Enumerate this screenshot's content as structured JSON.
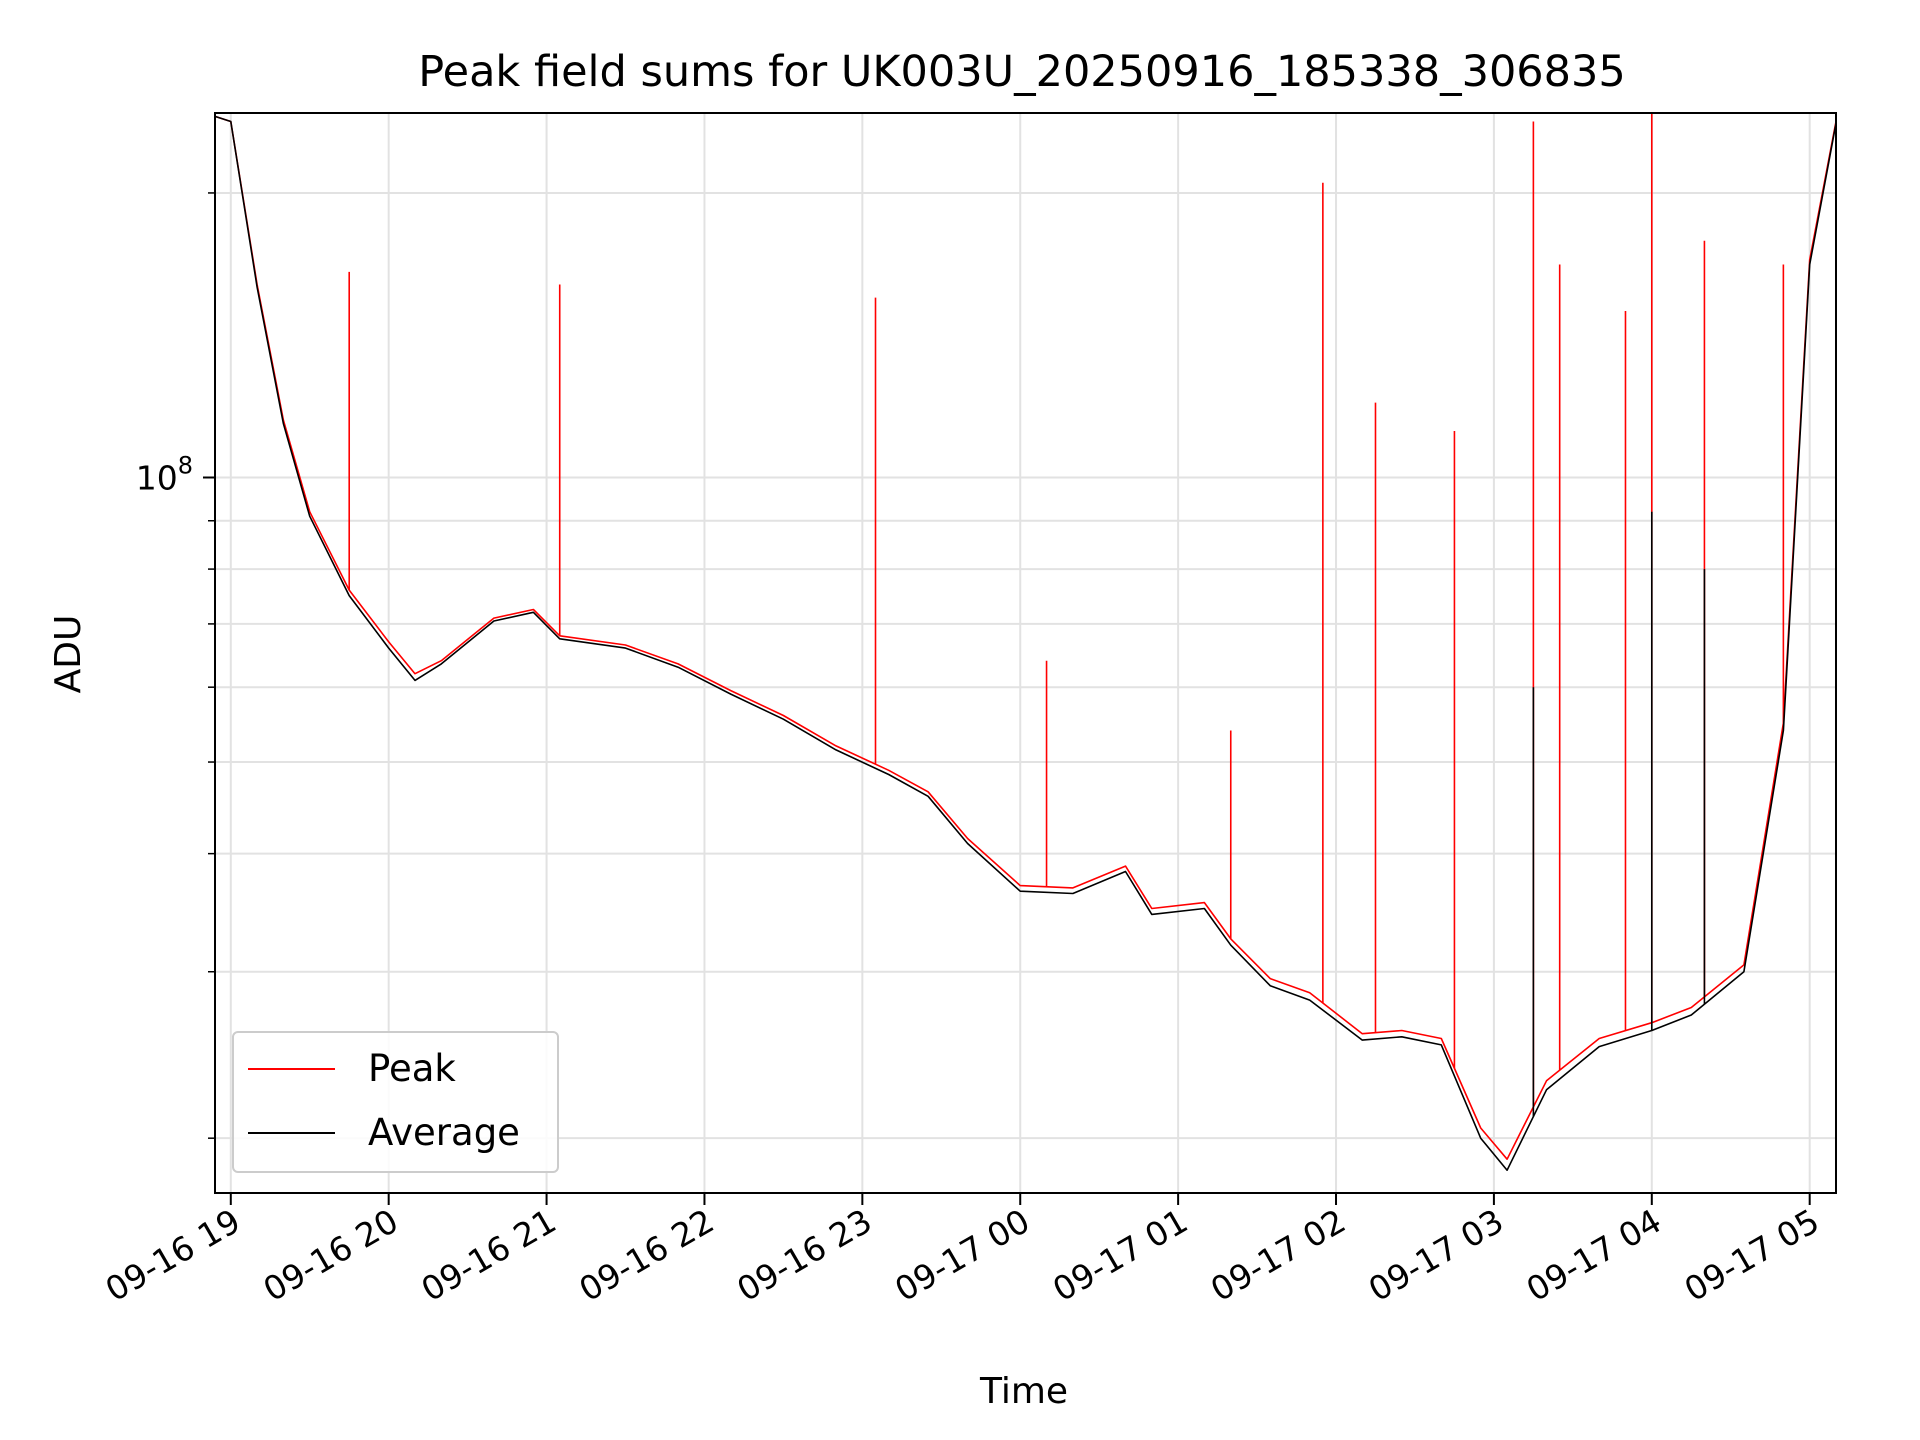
{
  "chart_data": {
    "type": "line",
    "title": "Peak field sums for UK003U_20250916_185338_306835",
    "xlabel": "Time",
    "ylabel": "ADU",
    "yscale": "log",
    "xlim": [
      "2025-09-16T18:54",
      "2025-09-17T05:10"
    ],
    "ylim": [
      17500000,
      243000000
    ],
    "grid": true,
    "legend_position": "lower-left",
    "x_ticks": [
      "09-16 19",
      "09-16 20",
      "09-16 21",
      "09-16 22",
      "09-16 23",
      "09-17 00",
      "09-17 01",
      "09-17 02",
      "09-17 03",
      "09-17 04",
      "09-17 05"
    ],
    "y_tick_labels": [
      {
        "value": 100000000,
        "base": "10",
        "exponent": "8"
      }
    ],
    "y_minor_ticks": [
      20000000,
      30000000,
      40000000,
      50000000,
      60000000,
      70000000,
      80000000,
      90000000,
      200000000
    ],
    "series": [
      {
        "name": "Peak",
        "color": "#ff0000",
        "baseline": [
          [
            "2025-09-16T18:54",
            241000000
          ],
          [
            "2025-09-16T19:00",
            238000000
          ],
          [
            "2025-09-16T19:10",
            160000000
          ],
          [
            "2025-09-16T19:20",
            115000000
          ],
          [
            "2025-09-16T19:30",
            92000000
          ],
          [
            "2025-09-16T19:45",
            76000000
          ],
          [
            "2025-09-16T20:00",
            67000000
          ],
          [
            "2025-09-16T20:10",
            62000000
          ],
          [
            "2025-09-16T20:20",
            64000000
          ],
          [
            "2025-09-16T20:40",
            71000000
          ],
          [
            "2025-09-16T20:55",
            72500000
          ],
          [
            "2025-09-16T21:05",
            68000000
          ],
          [
            "2025-09-16T21:30",
            66500000
          ],
          [
            "2025-09-16T21:50",
            63500000
          ],
          [
            "2025-09-16T22:10",
            59500000
          ],
          [
            "2025-09-16T22:30",
            56000000
          ],
          [
            "2025-09-16T22:50",
            52000000
          ],
          [
            "2025-09-16T23:10",
            49000000
          ],
          [
            "2025-09-16T23:25",
            46500000
          ],
          [
            "2025-09-16T23:40",
            41500000
          ],
          [
            "2025-09-17T00:00",
            37000000
          ],
          [
            "2025-09-17T00:20",
            36800000
          ],
          [
            "2025-09-17T00:40",
            38800000
          ],
          [
            "2025-09-17T00:50",
            35000000
          ],
          [
            "2025-09-17T01:10",
            35500000
          ],
          [
            "2025-09-17T01:20",
            32500000
          ],
          [
            "2025-09-17T01:35",
            29500000
          ],
          [
            "2025-09-17T01:50",
            28500000
          ],
          [
            "2025-09-17T02:10",
            25800000
          ],
          [
            "2025-09-17T02:25",
            26000000
          ],
          [
            "2025-09-17T02:40",
            25500000
          ],
          [
            "2025-09-17T02:55",
            20500000
          ],
          [
            "2025-09-17T03:05",
            19000000
          ],
          [
            "2025-09-17T03:20",
            23000000
          ],
          [
            "2025-09-17T03:40",
            25500000
          ],
          [
            "2025-09-17T04:00",
            26500000
          ],
          [
            "2025-09-17T04:15",
            27500000
          ],
          [
            "2025-09-17T04:35",
            30500000
          ],
          [
            "2025-09-17T04:50",
            55000000
          ],
          [
            "2025-09-17T05:00",
            170000000
          ],
          [
            "2025-09-17T05:10",
            238000000
          ]
        ],
        "spikes": [
          [
            "2025-09-16T19:45",
            165000000
          ],
          [
            "2025-09-16T21:05",
            160000000
          ],
          [
            "2025-09-16T23:05",
            155000000
          ],
          [
            "2025-09-17T00:10",
            64000000
          ],
          [
            "2025-09-17T01:20",
            54000000
          ],
          [
            "2025-09-17T01:55",
            205000000
          ],
          [
            "2025-09-17T02:15",
            120000000
          ],
          [
            "2025-09-17T02:45",
            112000000
          ],
          [
            "2025-09-17T03:15",
            238000000
          ],
          [
            "2025-09-17T03:25",
            168000000
          ],
          [
            "2025-09-17T03:50",
            150000000
          ],
          [
            "2025-09-17T04:00",
            243000000
          ],
          [
            "2025-09-17T04:20",
            178000000
          ],
          [
            "2025-09-17T04:50",
            168000000
          ]
        ]
      },
      {
        "name": "Average",
        "color": "#000000",
        "baseline": [
          [
            "2025-09-16T18:54",
            241000000
          ],
          [
            "2025-09-16T19:00",
            238000000
          ],
          [
            "2025-09-16T19:10",
            159000000
          ],
          [
            "2025-09-16T19:20",
            114000000
          ],
          [
            "2025-09-16T19:30",
            91000000
          ],
          [
            "2025-09-16T19:45",
            75000000
          ],
          [
            "2025-09-16T20:00",
            66000000
          ],
          [
            "2025-09-16T20:10",
            61000000
          ],
          [
            "2025-09-16T20:20",
            63500000
          ],
          [
            "2025-09-16T20:40",
            70500000
          ],
          [
            "2025-09-16T20:55",
            72000000
          ],
          [
            "2025-09-16T21:05",
            67500000
          ],
          [
            "2025-09-16T21:30",
            66000000
          ],
          [
            "2025-09-16T21:50",
            63000000
          ],
          [
            "2025-09-16T22:10",
            59000000
          ],
          [
            "2025-09-16T22:30",
            55500000
          ],
          [
            "2025-09-16T22:50",
            51500000
          ],
          [
            "2025-09-16T23:10",
            48500000
          ],
          [
            "2025-09-16T23:25",
            46000000
          ],
          [
            "2025-09-16T23:40",
            41000000
          ],
          [
            "2025-09-17T00:00",
            36500000
          ],
          [
            "2025-09-17T00:20",
            36300000
          ],
          [
            "2025-09-17T00:40",
            38300000
          ],
          [
            "2025-09-17T00:50",
            34500000
          ],
          [
            "2025-09-17T01:10",
            35000000
          ],
          [
            "2025-09-17T01:20",
            32000000
          ],
          [
            "2025-09-17T01:35",
            29000000
          ],
          [
            "2025-09-17T01:50",
            28000000
          ],
          [
            "2025-09-17T02:10",
            25400000
          ],
          [
            "2025-09-17T02:25",
            25600000
          ],
          [
            "2025-09-17T02:40",
            25100000
          ],
          [
            "2025-09-17T02:55",
            20000000
          ],
          [
            "2025-09-17T03:05",
            18500000
          ],
          [
            "2025-09-17T03:20",
            22500000
          ],
          [
            "2025-09-17T03:40",
            25000000
          ],
          [
            "2025-09-17T04:00",
            26000000
          ],
          [
            "2025-09-17T04:15",
            27000000
          ],
          [
            "2025-09-17T04:35",
            30000000
          ],
          [
            "2025-09-17T04:50",
            54000000
          ],
          [
            "2025-09-17T05:00",
            168000000
          ],
          [
            "2025-09-17T05:10",
            237000000
          ]
        ],
        "spikes": [
          [
            "2025-09-17T03:15",
            60000000
          ],
          [
            "2025-09-17T04:00",
            92000000
          ],
          [
            "2025-09-17T04:20",
            80000000
          ]
        ]
      }
    ]
  }
}
